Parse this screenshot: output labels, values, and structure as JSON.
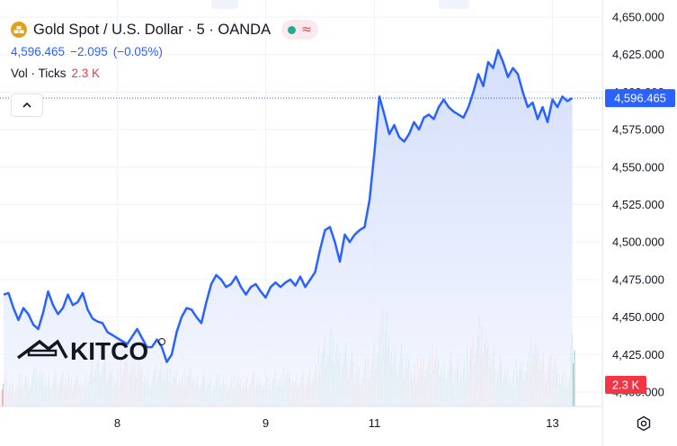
{
  "header": {
    "title": "Gold Spot / U.S. Dollar · 5 · OANDA",
    "price": "4,596.465",
    "change": "−2.095",
    "change_pct": "(−0.05%)",
    "vol_label": "Vol · Ticks",
    "vol_value": "2.3 K"
  },
  "icons": {
    "symbol": "gold-bars-icon",
    "market_status": "green-dot-icon",
    "data_status": "wave-icon",
    "collapse": "chevron-up-icon",
    "settings": "gear-icon"
  },
  "watermark": "KITCO",
  "colors": {
    "line": "#2962ff",
    "area_top": "#cdd9fb",
    "area_bottom": "#f3f6fe",
    "vol_up": "#26a69a",
    "vol_down": "#ef5350",
    "price_label_bg": "#2962ff",
    "vol_label_bg": "#f23645",
    "text": "#131722",
    "grid": "#f0f3fa"
  },
  "chart_data": {
    "type": "area",
    "title": "Gold Spot / U.S. Dollar · 5 · OANDA",
    "xlabel": "",
    "ylabel": "",
    "x_ticks": [
      "8",
      "9",
      "11",
      "13"
    ],
    "x_tick_index": [
      23,
      53,
      75,
      111
    ],
    "y_ticks": [
      "4,650.000",
      "4,625.000",
      "4,600.000",
      "4,575.000",
      "4,550.000",
      "4,525.000",
      "4,500.000",
      "4,475.000",
      "4,450.000",
      "4,425.000",
      "4,400.000"
    ],
    "ylim": [
      4397,
      4651
    ],
    "grid": true,
    "last_price_label": "4,596.465",
    "last_volume_label": "2.3 K",
    "series": [
      {
        "name": "Gold Spot / U.S. Dollar",
        "values": [
          4465,
          4466,
          4456,
          4448,
          4456,
          4452,
          4445,
          4442,
          4453,
          4467,
          4458,
          4452,
          4456,
          4465,
          4458,
          4460,
          4466,
          4455,
          4449,
          4447,
          4446,
          4440,
          4438,
          4436,
          4434,
          4432,
          4437,
          4442,
          4436,
          4430,
          4430,
          4435,
          4430,
          4420,
          4425,
          4440,
          4450,
          4456,
          4455,
          4450,
          4446,
          4460,
          4472,
          4478,
          4475,
          4470,
          4472,
          4477,
          4470,
          4465,
          4470,
          4472,
          4467,
          4463,
          4470,
          4473,
          4470,
          4473,
          4475,
          4471,
          4477,
          4470,
          4475,
          4480,
          4495,
          4508,
          4510,
          4500,
          4487,
          4505,
          4500,
          4505,
          4508,
          4510,
          4528,
          4560,
          4597,
          4585,
          4572,
          4578,
          4570,
          4567,
          4572,
          4580,
          4575,
          4583,
          4585,
          4582,
          4590,
          4595,
          4590,
          4587,
          4585,
          4583,
          4590,
          4600,
          4612,
          4604,
          4620,
          4616,
          4628,
          4620,
          4610,
          4616,
          4612,
          4600,
          4590,
          4593,
          4582,
          4590,
          4580,
          4595,
          4590,
          4597,
          4594,
          4596
        ]
      }
    ],
    "volume": {
      "name": "Vol · Ticks",
      "values": [
        1.0,
        0.9,
        0.8,
        1.1,
        1.0,
        0.9,
        1.3,
        1.2,
        1.0,
        0.9,
        1.1,
        1.0,
        1.2,
        1.1,
        0.9,
        1.0,
        0.8,
        1.0,
        1.4,
        1.6,
        1.8,
        1.5,
        1.3,
        1.2,
        1.5,
        1.7,
        1.6,
        1.4,
        1.2,
        1.0,
        1.1,
        1.3,
        1.5,
        1.4,
        1.2,
        1.1,
        1.0,
        1.2,
        1.1,
        0.9,
        1.0,
        1.0,
        0.9,
        1.1,
        1.0,
        0.8,
        0.9,
        1.0,
        0.8,
        0.9,
        1.0,
        1.1,
        0.9,
        1.0,
        0.9,
        1.1,
        1.0,
        1.2,
        1.0,
        0.9,
        1.1,
        1.0,
        1.2,
        1.4,
        1.8,
        2.2,
        2.5,
        2.0,
        1.6,
        1.9,
        1.7,
        1.5,
        1.3,
        1.6,
        1.5,
        2.0,
        2.6,
        2.9,
        2.1,
        1.8,
        1.9,
        1.7,
        1.6,
        1.4,
        1.6,
        1.5,
        1.7,
        1.8,
        1.5,
        1.3,
        1.6,
        1.4,
        1.5,
        1.6,
        1.9,
        2.2,
        2.8,
        2.4,
        2.0,
        1.7,
        1.5,
        1.4,
        1.3,
        1.2,
        1.5,
        1.4,
        1.7,
        2.0,
        1.8,
        1.6,
        1.5,
        1.7,
        1.4,
        1.2,
        1.0,
        2.3
      ],
      "max": 3.2
    }
  }
}
